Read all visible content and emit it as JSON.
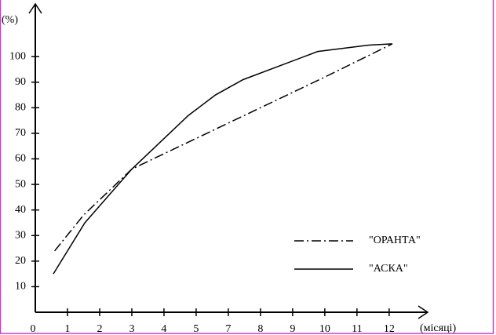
{
  "chart_data": {
    "type": "line",
    "y_label": "(%)",
    "x_label": "(місяці)",
    "xlim": [
      0,
      12.2
    ],
    "ylim": [
      0,
      120
    ],
    "xticks": [
      0,
      1,
      2,
      3,
      4,
      5,
      {
        "value": 6,
        "label": "7"
      },
      {
        "value": 7,
        "label": "8"
      },
      {
        "value": 8,
        "label": "9"
      },
      {
        "value": 9,
        "label": "10"
      },
      {
        "value": 10,
        "label": "11"
      },
      {
        "value": 11,
        "label": "12"
      }
    ],
    "yticks": [
      10,
      20,
      30,
      40,
      50,
      60,
      70,
      80,
      90,
      100
    ],
    "legend": "right",
    "series": [
      {
        "name": "\"ОРАНТА\"",
        "color": "#000000",
        "dash": "dashdot",
        "x": [
          0.6,
          1.5,
          2.5,
          3,
          5,
          7,
          9,
          11.1
        ],
        "values": [
          24,
          38,
          50,
          56,
          68,
          80,
          92,
          105
        ]
      },
      {
        "name": "\"АСКА\"",
        "color": "#000000",
        "dash": "solid",
        "x": [
          0.56,
          1.54,
          3,
          4.76,
          5.6,
          6.46,
          8.78,
          10.37,
          11.1
        ],
        "values": [
          15,
          35,
          56,
          77,
          85,
          91,
          102,
          104.5,
          105
        ]
      }
    ]
  }
}
